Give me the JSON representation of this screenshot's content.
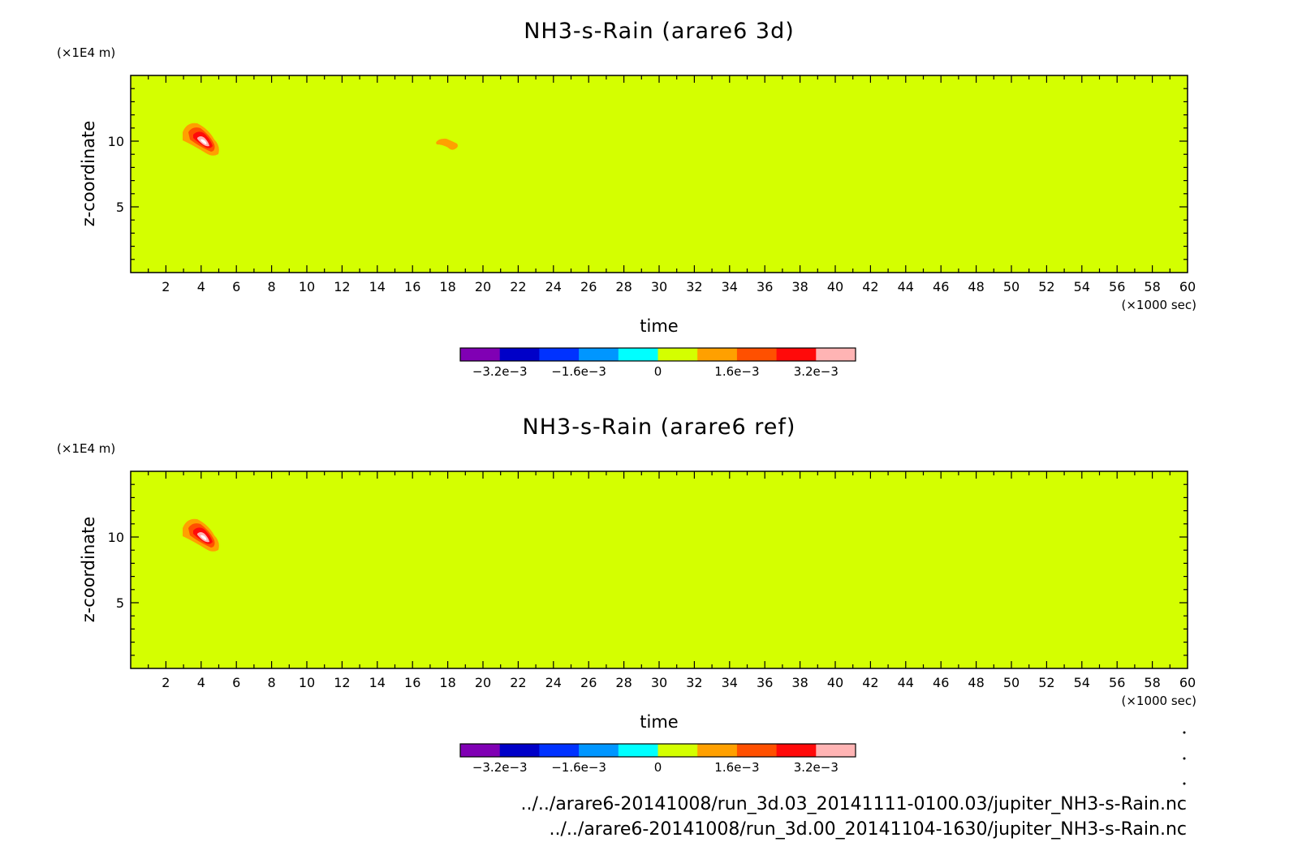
{
  "chart_data": [
    {
      "type": "heatmap",
      "title": "NH3-s-Rain (arare6 3d)",
      "xlabel": "time",
      "ylabel": "z-coordinate",
      "x_unit": "(×1000 sec)",
      "y_unit": "(×1E4 m)",
      "xlim": [
        0,
        60
      ],
      "ylim": [
        0,
        15
      ],
      "x_ticks": [
        2,
        4,
        6,
        8,
        10,
        12,
        14,
        16,
        18,
        20,
        22,
        24,
        26,
        28,
        30,
        32,
        34,
        36,
        38,
        40,
        42,
        44,
        46,
        48,
        50,
        52,
        54,
        56,
        58,
        60
      ],
      "x_tick_labels": [
        "2",
        "4",
        "6",
        "8",
        "10",
        "12",
        "14",
        "16",
        "18",
        "20",
        "22",
        "24",
        "26",
        "28",
        "30",
        "32",
        "34",
        "36",
        "38",
        "40",
        "42",
        "44",
        "46",
        "48",
        "50",
        "52",
        "54",
        "56",
        "58",
        "60"
      ],
      "y_ticks": [
        5,
        10
      ],
      "y_tick_labels": [
        "5",
        "10"
      ],
      "background_level": "0 to 8e-4",
      "features": [
        {
          "name": "main-blob",
          "x_center": 4.2,
          "z_center": 10.0,
          "peak_level": "> 3.2e-3"
        },
        {
          "name": "secondary-blob",
          "x_center": 18.2,
          "z_center": 9.9,
          "peak_level": "8e-4 to 1.6e-3"
        }
      ]
    },
    {
      "type": "heatmap",
      "title": "NH3-s-Rain (arare6 ref)",
      "xlabel": "time",
      "ylabel": "z-coordinate",
      "x_unit": "(×1000 sec)",
      "y_unit": "(×1E4 m)",
      "xlim": [
        0,
        60
      ],
      "ylim": [
        0,
        15
      ],
      "x_ticks": [
        2,
        4,
        6,
        8,
        10,
        12,
        14,
        16,
        18,
        20,
        22,
        24,
        26,
        28,
        30,
        32,
        34,
        36,
        38,
        40,
        42,
        44,
        46,
        48,
        50,
        52,
        54,
        56,
        58,
        60
      ],
      "x_tick_labels": [
        "2",
        "4",
        "6",
        "8",
        "10",
        "12",
        "14",
        "16",
        "18",
        "20",
        "22",
        "24",
        "26",
        "28",
        "30",
        "32",
        "34",
        "36",
        "38",
        "40",
        "42",
        "44",
        "46",
        "48",
        "50",
        "52",
        "54",
        "56",
        "58",
        "60"
      ],
      "y_ticks": [
        5,
        10
      ],
      "y_tick_labels": [
        "5",
        "10"
      ],
      "background_level": "0 to 8e-4",
      "features": [
        {
          "name": "main-blob",
          "x_center": 4.2,
          "z_center": 10.0,
          "peak_level": "> 3.2e-3"
        }
      ]
    }
  ],
  "colorbar": {
    "colors": [
      "#8000b4",
      "#0000c8",
      "#0032ff",
      "#0096ff",
      "#00ffff",
      "#d4ff00",
      "#ffa000",
      "#ff5000",
      "#ff0a0a",
      "#ffb4b4"
    ],
    "tick_labels": [
      "−3.2e−3",
      "−1.6e−3",
      "0",
      "1.6e−3",
      "3.2e−3"
    ],
    "tick_values": [
      -0.0032,
      -0.0016,
      0,
      0.0016,
      0.0032
    ],
    "range": [
      -0.004,
      0.004
    ]
  },
  "file_paths": [
    "../../arare6-20141008/run_3d.03_20141111-0100.03/jupiter_NH3-s-Rain.nc",
    "../../arare6-20141008/run_3d.00_20141104-1630/jupiter_NH3-s-Rain.nc"
  ]
}
